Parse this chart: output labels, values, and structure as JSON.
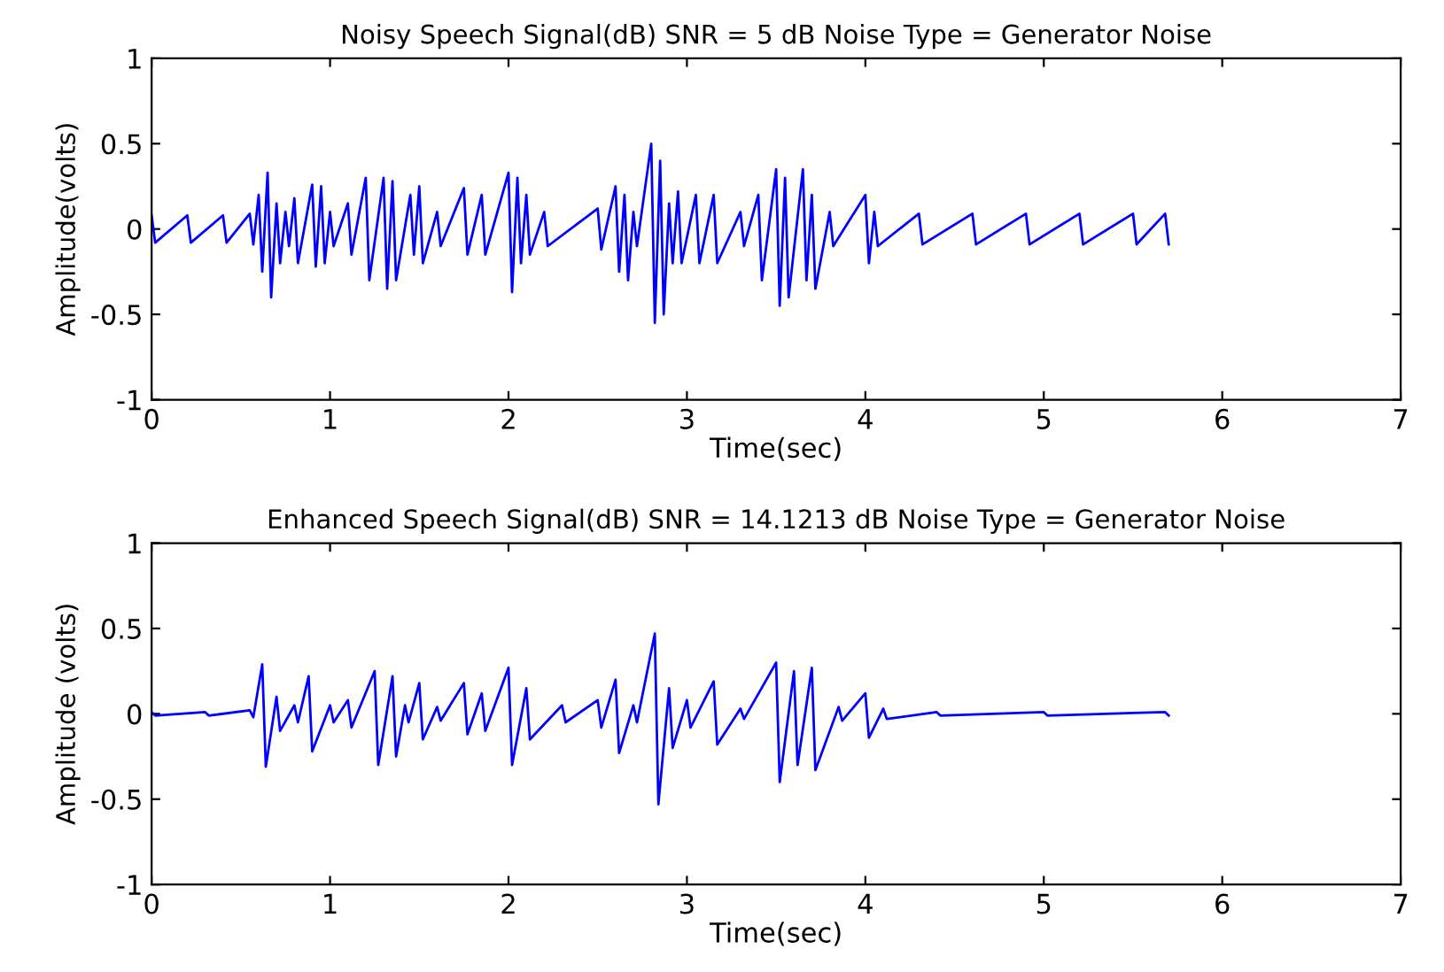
{
  "chart_data": [
    {
      "type": "line",
      "title": "Noisy Speech Signal(dB) SNR = 5 dB Noise Type = Generator Noise",
      "xlabel": "Time(sec)",
      "ylabel": "Amplitude(volts)",
      "xlim": [
        0,
        7
      ],
      "ylim": [
        -1,
        1
      ],
      "xticks": [
        0,
        1,
        2,
        3,
        4,
        5,
        6,
        7
      ],
      "yticks": [
        -1,
        -0.5,
        0,
        0.5,
        1
      ],
      "grid": false,
      "marker": "none",
      "line_style": "solid",
      "series": [
        {
          "color": "#0000ff",
          "x": [
            0,
            0.02,
            0.2,
            0.22,
            0.4,
            0.42,
            0.55,
            0.57,
            0.6,
            0.62,
            0.65,
            0.67,
            0.7,
            0.72,
            0.75,
            0.77,
            0.8,
            0.82,
            0.9,
            0.92,
            0.95,
            0.97,
            1.0,
            1.02,
            1.1,
            1.12,
            1.2,
            1.22,
            1.3,
            1.32,
            1.35,
            1.37,
            1.45,
            1.47,
            1.5,
            1.52,
            1.6,
            1.62,
            1.75,
            1.77,
            1.85,
            1.87,
            2.0,
            2.02,
            2.05,
            2.07,
            2.1,
            2.12,
            2.2,
            2.22,
            2.5,
            2.52,
            2.6,
            2.62,
            2.65,
            2.67,
            2.7,
            2.72,
            2.8,
            2.82,
            2.85,
            2.87,
            2.9,
            2.92,
            2.95,
            2.97,
            3.05,
            3.07,
            3.15,
            3.17,
            3.3,
            3.32,
            3.4,
            3.42,
            3.5,
            3.52,
            3.55,
            3.57,
            3.65,
            3.67,
            3.7,
            3.72,
            3.8,
            3.82,
            4.0,
            4.02,
            4.05,
            4.07,
            4.3,
            4.32,
            4.6,
            4.62,
            4.9,
            4.92,
            5.2,
            5.22,
            5.5,
            5.52,
            5.68,
            5.7
          ],
          "values": [
            0.08,
            -0.08,
            0.08,
            -0.08,
            0.08,
            -0.08,
            0.09,
            -0.09,
            0.2,
            -0.25,
            0.33,
            -0.4,
            0.15,
            -0.2,
            0.1,
            -0.1,
            0.18,
            -0.2,
            0.26,
            -0.22,
            0.25,
            -0.2,
            0.1,
            -0.1,
            0.15,
            -0.15,
            0.3,
            -0.3,
            0.3,
            -0.35,
            0.28,
            -0.3,
            0.2,
            -0.15,
            0.25,
            -0.2,
            0.1,
            -0.1,
            0.24,
            -0.15,
            0.2,
            -0.15,
            0.33,
            -0.37,
            0.3,
            -0.2,
            0.2,
            -0.15,
            0.1,
            -0.1,
            0.12,
            -0.12,
            0.25,
            -0.25,
            0.2,
            -0.3,
            0.1,
            -0.1,
            0.5,
            -0.55,
            0.4,
            -0.5,
            0.15,
            -0.2,
            0.22,
            -0.2,
            0.2,
            -0.2,
            0.2,
            -0.2,
            0.1,
            -0.1,
            0.2,
            -0.3,
            0.35,
            -0.45,
            0.3,
            -0.4,
            0.35,
            -0.3,
            0.2,
            -0.35,
            0.1,
            -0.1,
            0.2,
            -0.2,
            0.1,
            -0.1,
            0.09,
            -0.09,
            0.09,
            -0.09,
            0.09,
            -0.09,
            0.09,
            -0.09,
            0.09,
            -0.09,
            0.09,
            -0.09
          ]
        }
      ]
    },
    {
      "type": "line",
      "title": "Enhanced Speech Signal(dB) SNR = 14.1213 dB Noise Type = Generator Noise",
      "xlabel": "Time(sec)",
      "ylabel": "Amplitude (volts)",
      "xlim": [
        0,
        7
      ],
      "ylim": [
        -1,
        1
      ],
      "xticks": [
        0,
        1,
        2,
        3,
        4,
        5,
        6,
        7
      ],
      "yticks": [
        -1,
        -0.5,
        0,
        0.5,
        1
      ],
      "grid": false,
      "marker": "none",
      "line_style": "solid",
      "series": [
        {
          "color": "#0000ff",
          "x": [
            0,
            0.02,
            0.3,
            0.32,
            0.55,
            0.57,
            0.62,
            0.64,
            0.7,
            0.72,
            0.8,
            0.82,
            0.88,
            0.9,
            1.0,
            1.02,
            1.1,
            1.12,
            1.25,
            1.27,
            1.35,
            1.37,
            1.42,
            1.44,
            1.5,
            1.52,
            1.6,
            1.62,
            1.75,
            1.77,
            1.85,
            1.87,
            2.0,
            2.02,
            2.1,
            2.12,
            2.3,
            2.32,
            2.5,
            2.52,
            2.6,
            2.62,
            2.7,
            2.72,
            2.82,
            2.84,
            2.9,
            2.92,
            3.0,
            3.02,
            3.15,
            3.17,
            3.3,
            3.32,
            3.5,
            3.52,
            3.6,
            3.62,
            3.7,
            3.72,
            3.85,
            3.87,
            4.0,
            4.02,
            4.1,
            4.12,
            4.4,
            4.42,
            5.0,
            5.02,
            5.68,
            5.7
          ],
          "values": [
            0.01,
            -0.01,
            0.01,
            -0.01,
            0.02,
            -0.02,
            0.29,
            -0.31,
            0.1,
            -0.1,
            0.05,
            -0.05,
            0.22,
            -0.22,
            0.05,
            -0.05,
            0.08,
            -0.08,
            0.25,
            -0.3,
            0.22,
            -0.25,
            0.05,
            -0.05,
            0.18,
            -0.15,
            0.04,
            -0.04,
            0.18,
            -0.12,
            0.12,
            -0.1,
            0.27,
            -0.3,
            0.15,
            -0.15,
            0.05,
            -0.05,
            0.08,
            -0.08,
            0.2,
            -0.23,
            0.05,
            -0.05,
            0.47,
            -0.53,
            0.15,
            -0.2,
            0.08,
            -0.08,
            0.19,
            -0.18,
            0.03,
            -0.03,
            0.3,
            -0.4,
            0.25,
            -0.3,
            0.27,
            -0.33,
            0.04,
            -0.04,
            0.12,
            -0.14,
            0.03,
            -0.03,
            0.01,
            -0.01,
            0.01,
            -0.01,
            0.01,
            -0.01
          ]
        }
      ]
    }
  ]
}
